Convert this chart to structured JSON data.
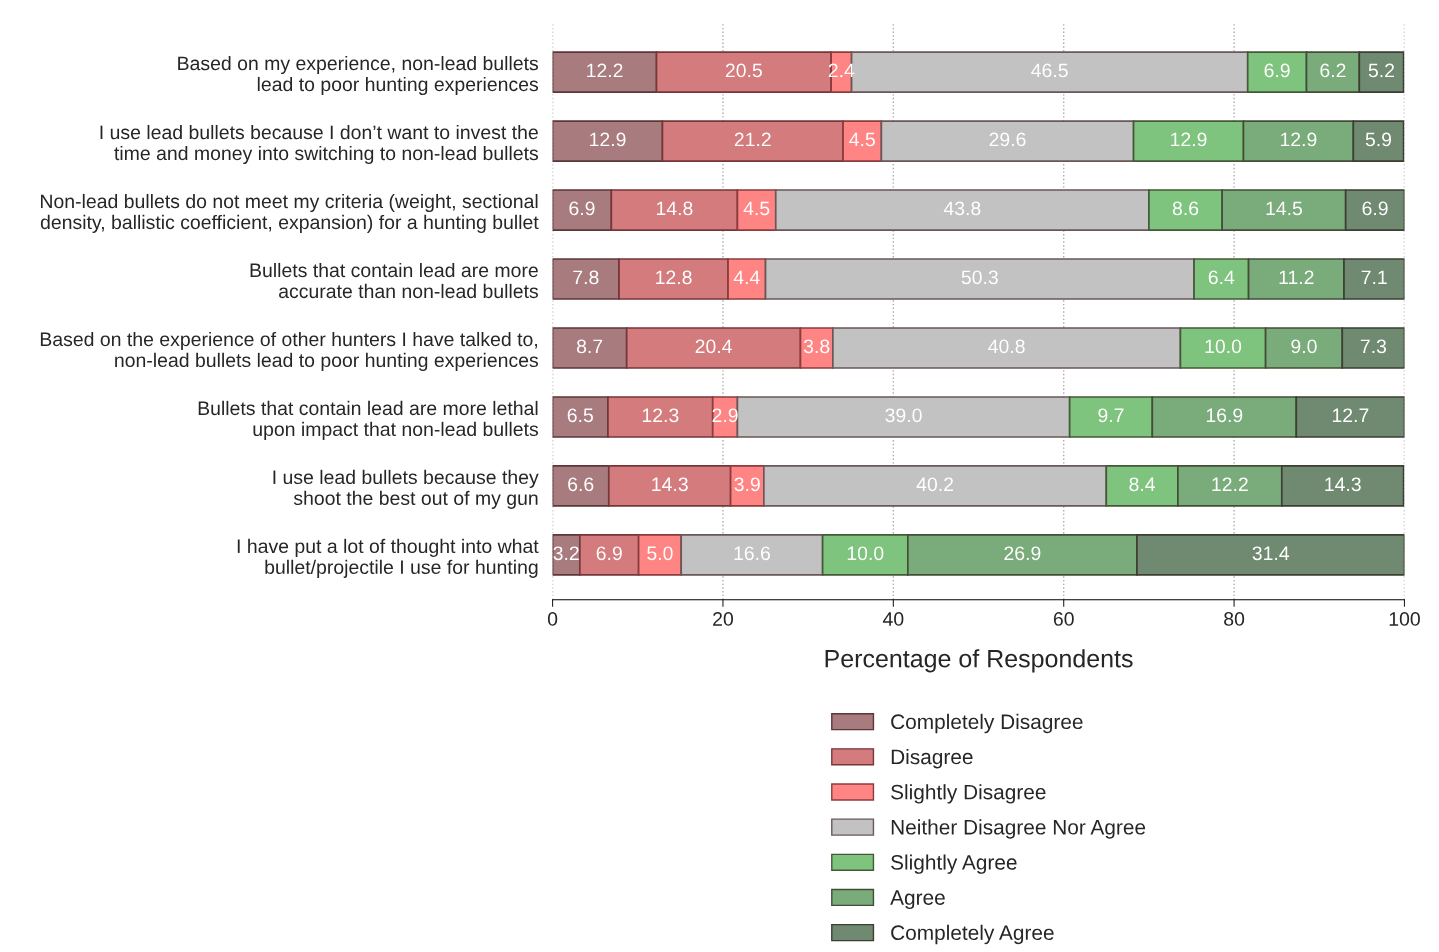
{
  "chart_data": {
    "type": "bar",
    "orientation": "horizontal",
    "stacked": true,
    "categories": [
      "Based on my experience, non-lead bullets\nlead to poor hunting experiences",
      "I use lead bullets because I don’t want to invest the\ntime and money into switching to non-lead bullets",
      "Non-lead bullets do not meet my criteria (weight, sectional\ndensity, ballistic coefficient, expansion) for a hunting bullet",
      "Bullets that contain lead are more\naccurate than non-lead bullets",
      "Based on the experience of other hunters I have talked to,\nnon-lead bullets lead to poor hunting experiences",
      "Bullets that contain lead are more lethal\nupon impact that non-lead bullets",
      "I use lead bullets because they\nshoot the best out of my gun",
      "I have put a lot of thought into what\nbullet/projectile I use for hunting"
    ],
    "series": [
      {
        "name": "Completely Disagree",
        "color": "#a87b7e",
        "values": [
          12.2,
          12.9,
          6.9,
          7.8,
          8.7,
          6.5,
          6.6,
          3.2
        ],
        "value_labels": [
          "12.2",
          "12.9",
          "6.9",
          "7.8",
          "8.7",
          "6.5",
          "6.6",
          "3.2"
        ]
      },
      {
        "name": "Disagree",
        "color": "#d47b7e",
        "values": [
          20.5,
          21.2,
          14.8,
          12.8,
          20.4,
          12.3,
          14.3,
          6.9
        ],
        "value_labels": [
          "20.5",
          "21.2",
          "14.8",
          "12.8",
          "20.4",
          "12.3",
          "14.3",
          "6.9"
        ]
      },
      {
        "name": "Slightly Disagree",
        "color": "#ff8585",
        "values": [
          2.4,
          4.5,
          4.5,
          4.4,
          3.8,
          2.9,
          3.9,
          5.0
        ],
        "value_labels": [
          "2.4",
          "4.5",
          "4.5",
          "4.4",
          "3.8",
          "2.9",
          "3.9",
          "5.0"
        ]
      },
      {
        "name": "Neither Disagree Nor Agree",
        "color": "#c2c2c2",
        "values": [
          46.5,
          29.6,
          43.8,
          50.3,
          40.8,
          39.0,
          40.2,
          16.6
        ],
        "value_labels": [
          "46.5",
          "29.6",
          "43.8",
          "50.3",
          "40.8",
          "39.0",
          "40.2",
          "16.6"
        ]
      },
      {
        "name": "Slightly Agree",
        "color": "#7ec47e",
        "values": [
          6.9,
          12.9,
          8.6,
          6.4,
          10.0,
          9.7,
          8.4,
          10.0
        ],
        "value_labels": [
          "6.9",
          "12.9",
          "8.6",
          "6.4",
          "10.0",
          "9.7",
          "8.4",
          "10.0"
        ]
      },
      {
        "name": "Agree",
        "color": "#7aab7a",
        "values": [
          6.2,
          12.9,
          14.5,
          11.2,
          9.0,
          16.9,
          12.2,
          26.9
        ],
        "value_labels": [
          "6.2",
          "12.9",
          "14.5",
          "11.2",
          "9.0",
          "16.9",
          "12.2",
          "26.9"
        ]
      },
      {
        "name": "Completely Agree",
        "color": "#6f8a70",
        "values": [
          5.2,
          5.9,
          6.9,
          7.1,
          7.3,
          12.7,
          14.3,
          31.4
        ],
        "value_labels": [
          "5.2",
          "5.9",
          "6.9",
          "7.1",
          "7.3",
          "12.7",
          "14.3",
          "31.4"
        ]
      }
    ],
    "xlabel": "Percentage of Respondents",
    "xlim": [
      0,
      100
    ],
    "xticks": [
      0,
      20,
      40,
      60,
      80,
      100
    ],
    "grid": "x",
    "legend": "bottom"
  }
}
